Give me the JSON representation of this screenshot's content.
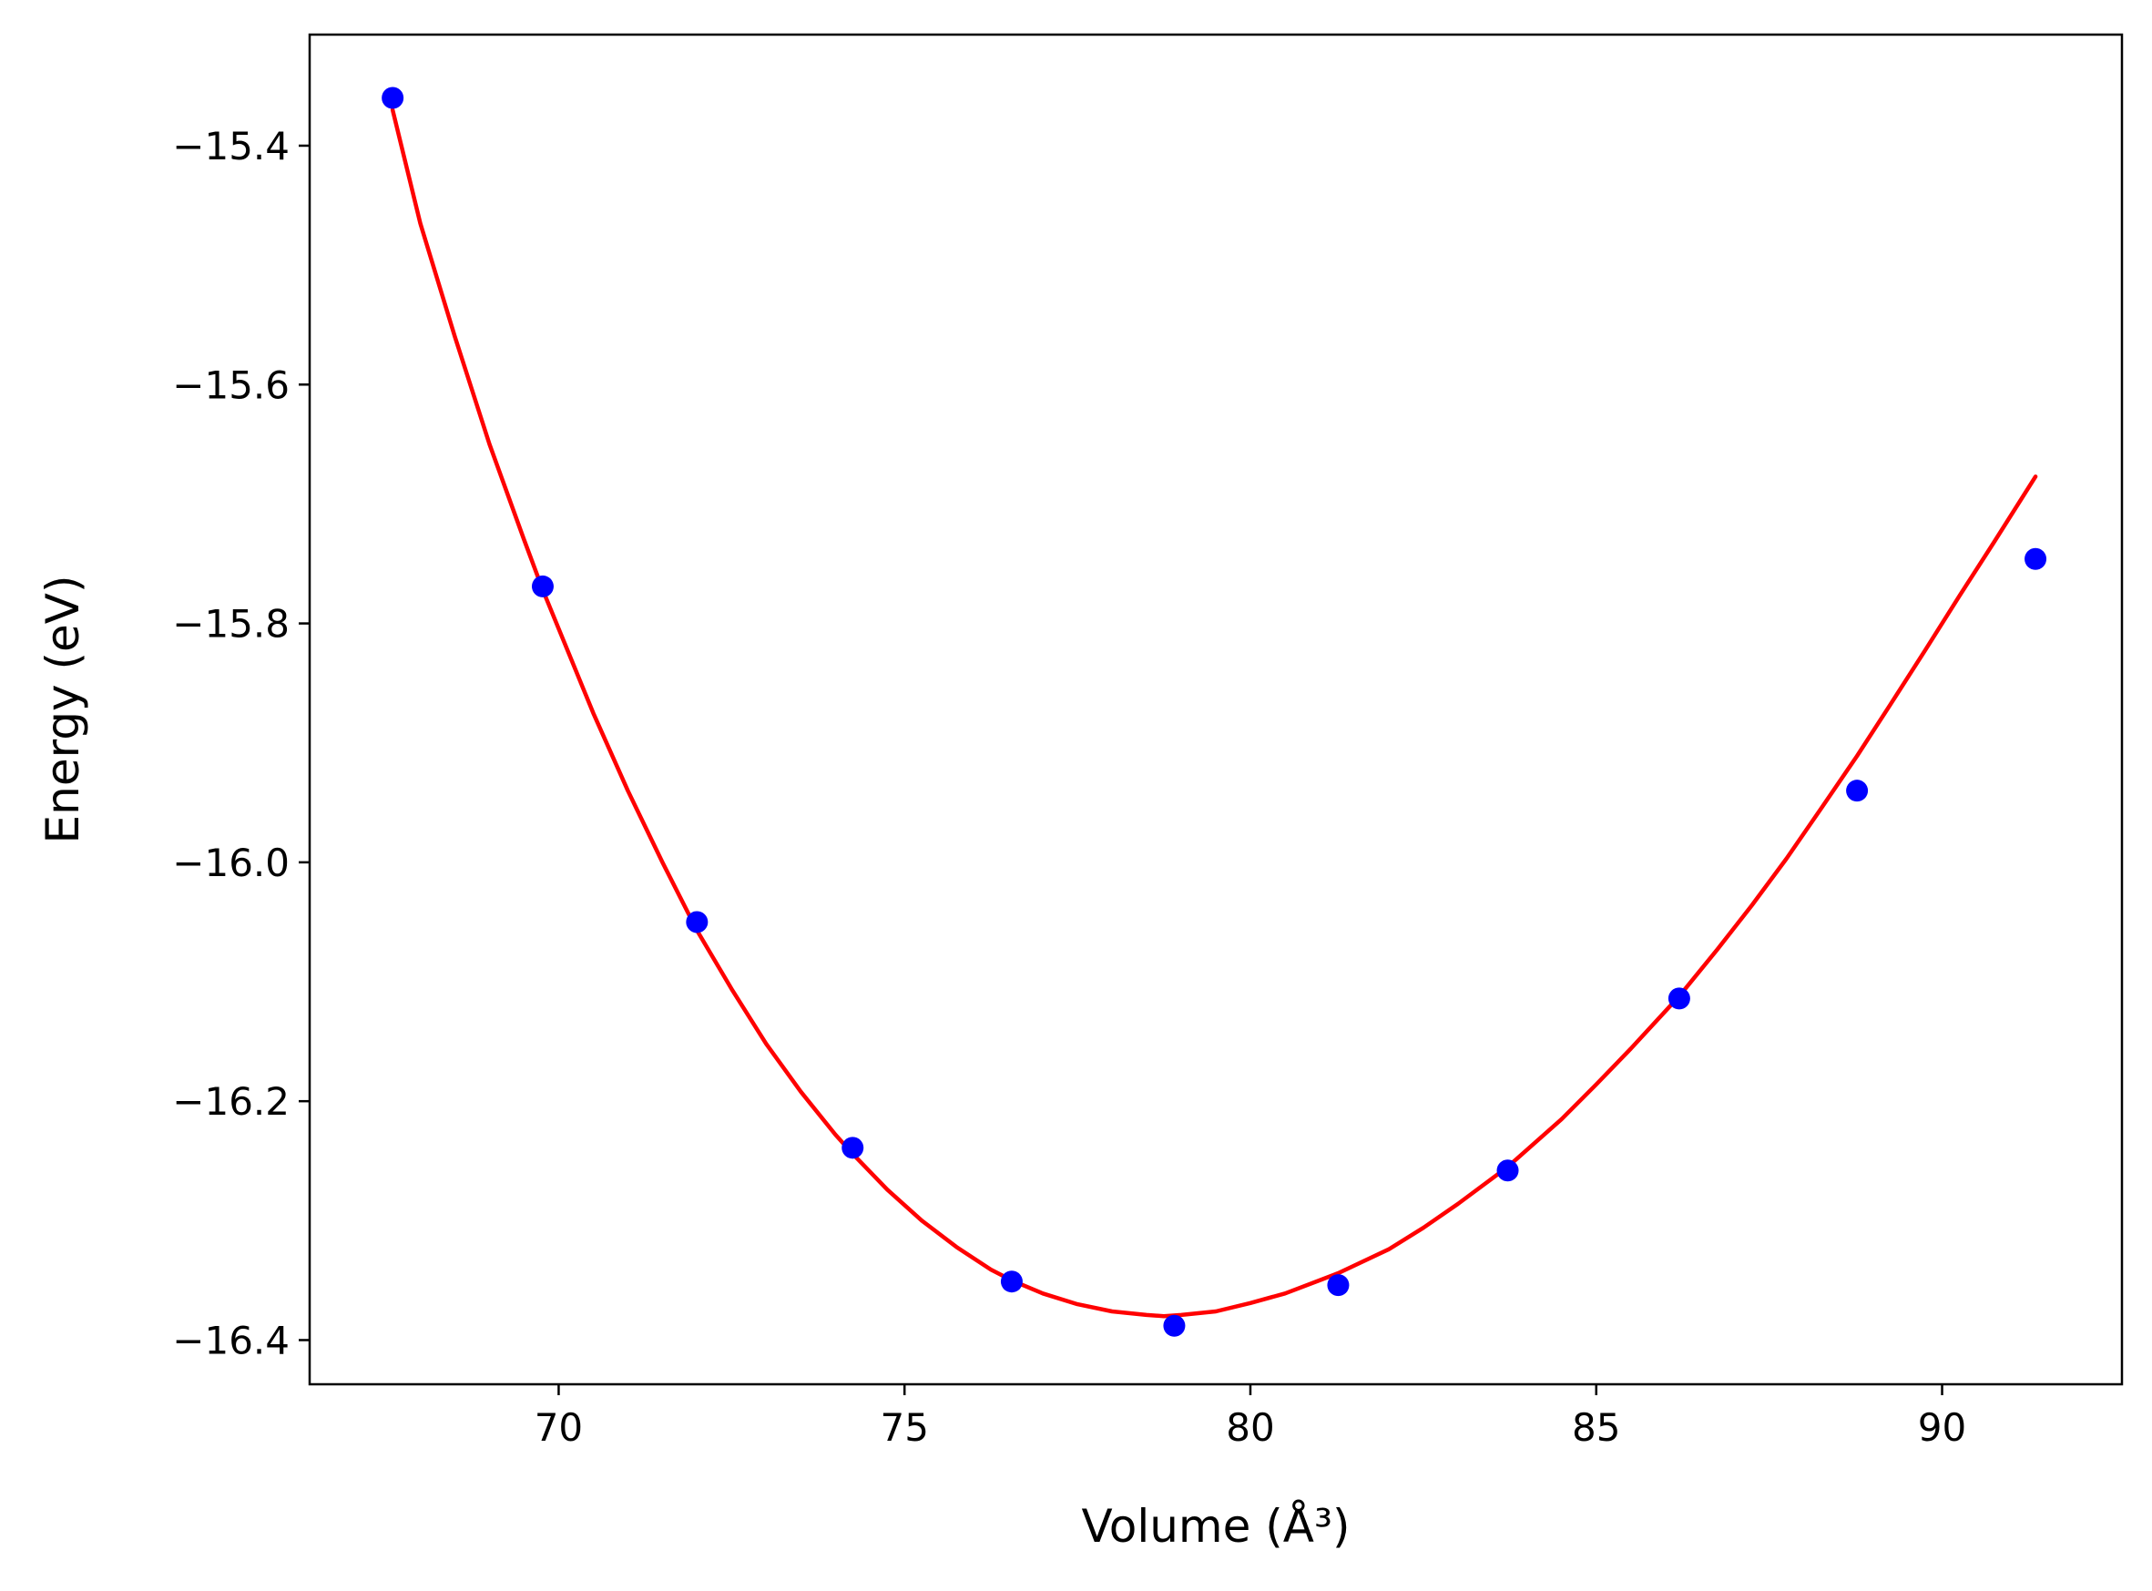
{
  "chart_data": {
    "type": "scatter",
    "xlabel": "Volume (Å³)",
    "ylabel": "Energy (eV)",
    "xlim": [
      66.4,
      92.6
    ],
    "ylim": [
      -16.437,
      -15.307
    ],
    "x_ticks": [
      70,
      75,
      80,
      85,
      90
    ],
    "y_ticks": [
      -15.4,
      -15.6,
      -15.8,
      -16.0,
      -16.2,
      -16.4
    ],
    "x_tick_labels": [
      "70",
      "75",
      "80",
      "85",
      "90"
    ],
    "y_tick_labels": [
      "−15.4",
      "−15.6",
      "−15.8",
      "−16.0",
      "−16.2",
      "−16.4"
    ],
    "grid": false,
    "series": [
      {
        "kind": "points",
        "color": "#0000ff",
        "x": [
          67.6,
          69.77,
          72.0,
          74.25,
          76.55,
          78.9,
          81.27,
          83.72,
          86.2,
          88.77,
          91.35
        ],
        "y": [
          -15.36,
          -15.769,
          -16.05,
          -16.239,
          -16.351,
          -16.388,
          -16.354,
          -16.258,
          -16.114,
          -15.94,
          -15.746
        ]
      },
      {
        "kind": "fit-curve",
        "color": "#ff0000",
        "x": [
          67.6,
          68.0,
          68.5,
          69.0,
          69.5,
          69.77,
          70.5,
          71.0,
          71.5,
          72.0,
          72.5,
          73.0,
          73.5,
          74.0,
          74.25,
          74.75,
          75.25,
          75.75,
          76.25,
          76.55,
          77.0,
          77.5,
          78.0,
          78.5,
          78.75,
          79.0,
          79.5,
          80.0,
          80.5,
          81.0,
          81.27,
          82.0,
          82.5,
          83.0,
          83.72,
          84.5,
          85.0,
          85.5,
          86.2,
          86.75,
          87.25,
          87.75,
          88.25,
          88.77,
          89.25,
          89.75,
          90.25,
          90.75,
          91.35
        ],
        "y": [
          -15.37,
          -15.465,
          -15.56,
          -15.65,
          -15.73,
          -15.772,
          -15.875,
          -15.94,
          -16.0,
          -16.057,
          -16.106,
          -16.152,
          -16.192,
          -16.228,
          -16.244,
          -16.274,
          -16.3,
          -16.322,
          -16.341,
          -16.35,
          -16.361,
          -16.37,
          -16.376,
          -16.379,
          -16.38,
          -16.379,
          -16.376,
          -16.369,
          -16.361,
          -16.35,
          -16.344,
          -16.324,
          -16.306,
          -16.286,
          -16.255,
          -16.215,
          -16.186,
          -16.156,
          -16.112,
          -16.073,
          -16.036,
          -15.997,
          -15.955,
          -15.911,
          -15.868,
          -15.823,
          -15.777,
          -15.732,
          -15.677
        ]
      }
    ]
  }
}
